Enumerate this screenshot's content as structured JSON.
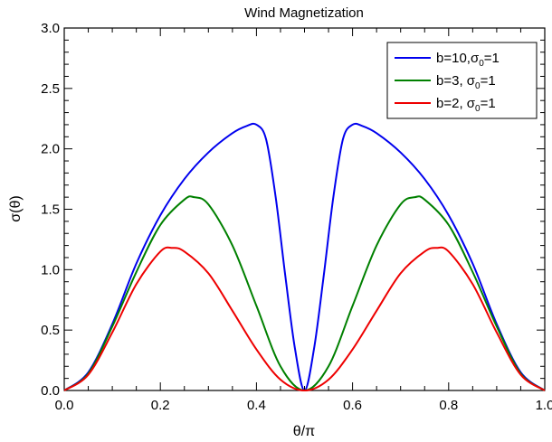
{
  "chart_data": {
    "type": "line",
    "title": "Wind Magnetization",
    "xlabel": "θ/π",
    "ylabel": "σ(θ)",
    "xlim": [
      0.0,
      1.0
    ],
    "ylim": [
      0.0,
      3.0
    ],
    "xticks": [
      0.0,
      0.2,
      0.4,
      0.6,
      0.8,
      1.0
    ],
    "xtick_labels": [
      "0.0",
      "0.2",
      "0.4",
      "0.6",
      "0.8",
      "1.0"
    ],
    "yticks": [
      0.0,
      0.5,
      1.0,
      1.5,
      2.0,
      2.5,
      3.0
    ],
    "ytick_labels": [
      "0.0",
      "0.5",
      "1.0",
      "1.5",
      "2.0",
      "2.5",
      "3.0"
    ],
    "grid": false,
    "legend_position": "top-right",
    "series": [
      {
        "name": "b=10,σ0=1",
        "legend": {
          "pre": "b=10,σ",
          "sub": "0",
          "post": "=1"
        },
        "color": "#0000ee",
        "x": [
          0.0,
          0.05,
          0.1,
          0.15,
          0.2,
          0.25,
          0.3,
          0.35,
          0.38,
          0.4,
          0.42,
          0.44,
          0.46,
          0.48,
          0.5,
          0.52,
          0.54,
          0.56,
          0.58,
          0.6,
          0.62,
          0.65,
          0.7,
          0.75,
          0.8,
          0.85,
          0.9,
          0.95,
          1.0
        ],
        "y": [
          0.0,
          0.15,
          0.55,
          1.05,
          1.45,
          1.75,
          1.97,
          2.13,
          2.19,
          2.2,
          2.08,
          1.6,
          0.95,
          0.35,
          0.0,
          0.35,
          0.95,
          1.6,
          2.08,
          2.2,
          2.19,
          2.13,
          1.97,
          1.75,
          1.45,
          1.05,
          0.55,
          0.15,
          0.0
        ]
      },
      {
        "name": "b=3, σ0=1",
        "legend": {
          "pre": "b=3, σ",
          "sub": "0",
          "post": "=1"
        },
        "color": "#008000",
        "x": [
          0.0,
          0.05,
          0.1,
          0.15,
          0.2,
          0.25,
          0.27,
          0.3,
          0.35,
          0.4,
          0.45,
          0.5,
          0.55,
          0.6,
          0.65,
          0.7,
          0.73,
          0.75,
          0.8,
          0.85,
          0.9,
          0.95,
          1.0
        ],
        "y": [
          0.0,
          0.14,
          0.53,
          0.98,
          1.37,
          1.58,
          1.6,
          1.54,
          1.2,
          0.7,
          0.2,
          0.0,
          0.2,
          0.7,
          1.2,
          1.54,
          1.6,
          1.58,
          1.37,
          0.98,
          0.53,
          0.14,
          0.0
        ]
      },
      {
        "name": "b=2, σ0=1",
        "legend": {
          "pre": "b=2, σ",
          "sub": "0",
          "post": "=1"
        },
        "color": "#ee0000",
        "x": [
          0.0,
          0.05,
          0.1,
          0.15,
          0.2,
          0.225,
          0.25,
          0.3,
          0.35,
          0.4,
          0.45,
          0.5,
          0.55,
          0.6,
          0.65,
          0.7,
          0.75,
          0.775,
          0.8,
          0.85,
          0.9,
          0.95,
          1.0
        ],
        "y": [
          0.0,
          0.13,
          0.48,
          0.88,
          1.15,
          1.18,
          1.15,
          0.97,
          0.66,
          0.34,
          0.09,
          0.0,
          0.09,
          0.34,
          0.66,
          0.97,
          1.15,
          1.18,
          1.15,
          0.88,
          0.48,
          0.13,
          0.0
        ]
      }
    ]
  }
}
